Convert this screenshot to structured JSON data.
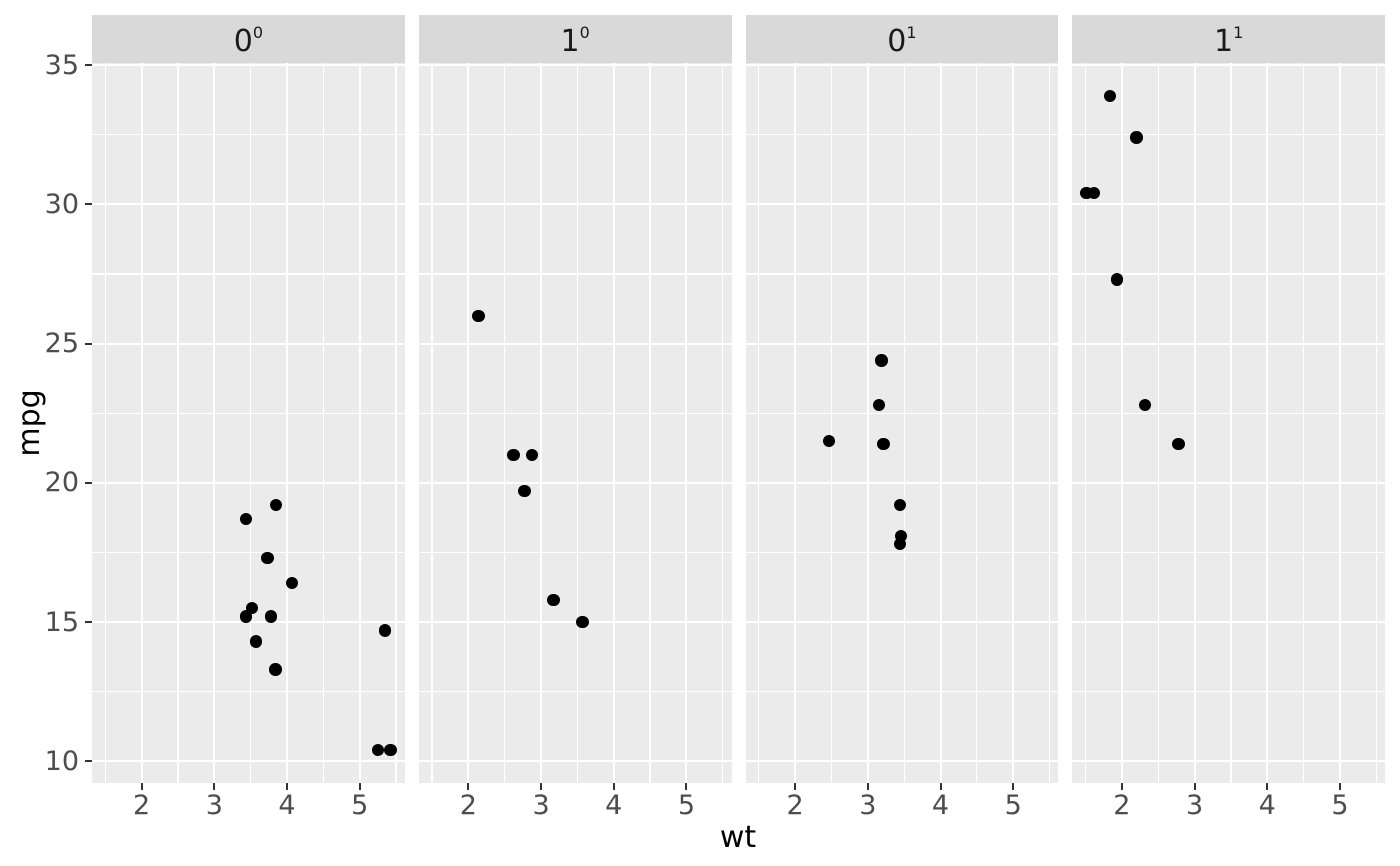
{
  "theme": {
    "figure_background": "#FFFFFF",
    "panel_background": "#EBEBEB",
    "strip_background": "#D9D9D9",
    "gridline_color": "#FFFFFF",
    "tick_mark_color": "#333333",
    "axis_text_color": "#4D4D4D",
    "strip_text_color": "#1A1A1A",
    "axis_title_color": "#000000",
    "point_color": "#000000"
  },
  "chart_data": {
    "type": "scatter",
    "title": "",
    "xlabel": "wt",
    "ylabel": "mpg",
    "legend": "none",
    "grid": "white major and minor gridlines on gray panel",
    "xlim": [
      1.317,
      5.62
    ],
    "ylim": [
      9.225,
      35.075
    ],
    "x_major_ticks": [
      2,
      3,
      4,
      5
    ],
    "y_major_ticks": [
      10,
      15,
      20,
      25,
      30,
      35
    ],
    "x_minor_gridlines": [
      1.5,
      2.5,
      3.5,
      4.5,
      5.5
    ],
    "y_minor_gridlines": [
      12.5,
      17.5,
      22.5,
      27.5,
      32.5
    ],
    "point_format": [
      "wt",
      "mpg"
    ],
    "facets": [
      {
        "strip_base": "0",
        "strip_exponent": "0",
        "points": [
          [
            3.44,
            18.7
          ],
          [
            3.57,
            14.3
          ],
          [
            3.52,
            15.5
          ],
          [
            3.435,
            15.2
          ],
          [
            3.73,
            17.3
          ],
          [
            3.78,
            15.2
          ],
          [
            4.07,
            16.4
          ],
          [
            3.84,
            13.3
          ],
          [
            3.845,
            19.2
          ],
          [
            5.25,
            10.4
          ],
          [
            5.345,
            14.7
          ],
          [
            5.424,
            10.4
          ]
        ]
      },
      {
        "strip_base": "1",
        "strip_exponent": "0",
        "points": [
          [
            2.14,
            26.0
          ],
          [
            2.62,
            21.0
          ],
          [
            2.875,
            21.0
          ],
          [
            2.77,
            19.7
          ],
          [
            3.17,
            15.8
          ],
          [
            3.57,
            15.0
          ]
        ]
      },
      {
        "strip_base": "0",
        "strip_exponent": "1",
        "points": [
          [
            2.465,
            21.5
          ],
          [
            3.15,
            22.8
          ],
          [
            3.19,
            24.4
          ],
          [
            3.215,
            21.4
          ],
          [
            3.44,
            19.2
          ],
          [
            3.44,
            17.8
          ],
          [
            3.46,
            18.1
          ]
        ]
      },
      {
        "strip_base": "1",
        "strip_exponent": "1",
        "points": [
          [
            1.513,
            30.4
          ],
          [
            1.615,
            30.4
          ],
          [
            1.835,
            33.9
          ],
          [
            1.935,
            27.3
          ],
          [
            2.2,
            32.4
          ],
          [
            2.32,
            22.8
          ],
          [
            2.78,
            21.4
          ]
        ]
      }
    ]
  }
}
